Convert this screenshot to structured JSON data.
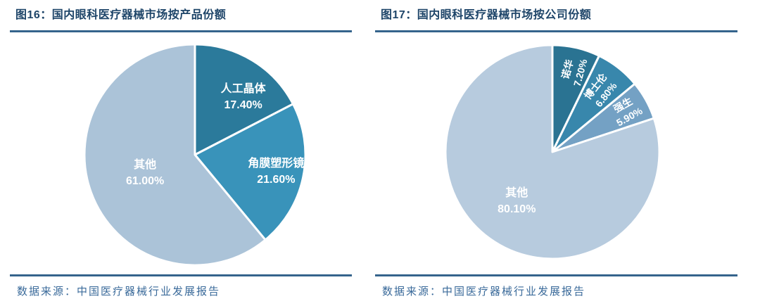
{
  "colors": {
    "background": "#ffffff",
    "title_text": "#1e4569",
    "rule": "#35648c",
    "source_text": "#3a6a9a",
    "pie_label_text": "#ffffff",
    "slice_gap": "#ffffff"
  },
  "panels": [
    {
      "title": "图16：国内眼科医疗器械市场按产品份额",
      "source": "数据来源：中国医疗器械行业发展报告"
    },
    {
      "title": "图17：国内眼科医疗器械市场按公司份额",
      "source": "数据来源：中国医疗器械行业发展报告"
    }
  ],
  "chart_data": [
    {
      "type": "pie",
      "title": "国内眼科医疗器械市场按产品份额",
      "start_angle_deg": 0,
      "direction": "clockwise",
      "legend": "none",
      "slice_border_color": "#ffffff",
      "slices": [
        {
          "label": "人工晶体",
          "value": 17.4,
          "percent_label": "17.40%",
          "color": "#2b7a9b",
          "label_radius_frac": 0.68,
          "label_angle_deg": 40,
          "label_rotate": false
        },
        {
          "label": "角膜塑形镜",
          "value": 21.6,
          "percent_label": "21.60%",
          "color": "#3993ba",
          "label_radius_frac": 0.75,
          "label_rotate": false
        },
        {
          "label": "其他",
          "value": 61.0,
          "percent_label": "61.00%",
          "color": "#abc3d8",
          "label_radius_frac": 0.48,
          "label_rotate": false
        }
      ]
    },
    {
      "type": "pie",
      "title": "国内眼科医疗器械市场按公司份额",
      "start_angle_deg": 0,
      "direction": "clockwise",
      "legend": "none",
      "slice_border_color": "#ffffff",
      "slices": [
        {
          "label": "诺华",
          "value": 7.2,
          "percent_label": "7.20%",
          "color": "#2a7392",
          "label_radius_frac": 0.78,
          "label_angle_deg": 15,
          "label_rotate": true
        },
        {
          "label": "博士伦",
          "value": 6.8,
          "percent_label": "6.80%",
          "color": "#3887ac",
          "label_radius_frac": 0.73,
          "label_rotate": true
        },
        {
          "label": "强生",
          "value": 5.9,
          "percent_label": "5.90%",
          "color": "#74a1c4",
          "label_radius_frac": 0.79,
          "label_rotate": true
        },
        {
          "label": "其他",
          "value": 80.1,
          "percent_label": "80.10%",
          "color": "#b7cbde",
          "label_radius_frac": 0.57,
          "label_rotate": false
        }
      ]
    }
  ]
}
